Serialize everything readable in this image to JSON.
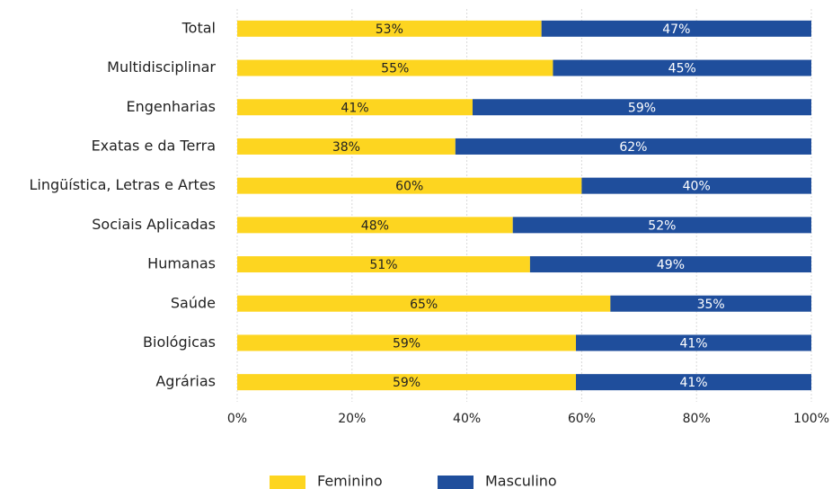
{
  "chart_data": {
    "type": "stacked_hbar",
    "categories": [
      "Total",
      "Multidisciplinar",
      "Engenharias",
      "Exatas e da Terra",
      "Lingüística, Letras e Artes",
      "Sociais Aplicadas",
      "Humanas",
      "Saúde",
      "Biológicas",
      "Agrárias"
    ],
    "series": [
      {
        "name": "Feminino",
        "color": "#fdd520",
        "values": [
          53,
          55,
          41,
          38,
          60,
          48,
          51,
          65,
          59,
          59
        ],
        "value_labels": [
          "53%",
          "55%",
          "41%",
          "38%",
          "60%",
          "48%",
          "51%",
          "65%",
          "59%",
          "59%"
        ]
      },
      {
        "name": "Masculino",
        "color": "#1f4e9c",
        "values": [
          47,
          45,
          59,
          62,
          40,
          52,
          49,
          35,
          41,
          41
        ],
        "value_labels": [
          "47%",
          "45%",
          "59%",
          "62%",
          "40%",
          "52%",
          "49%",
          "35%",
          "41%",
          "41%"
        ]
      }
    ],
    "xlim": [
      0,
      100
    ],
    "xticks": [
      {
        "value": 0,
        "label": "0%"
      },
      {
        "value": 20,
        "label": "20%"
      },
      {
        "value": 40,
        "label": "40%"
      },
      {
        "value": 60,
        "label": "60%"
      },
      {
        "value": 80,
        "label": "80%"
      },
      {
        "value": 100,
        "label": "100%"
      }
    ],
    "grid": true,
    "legend": "bottom"
  }
}
